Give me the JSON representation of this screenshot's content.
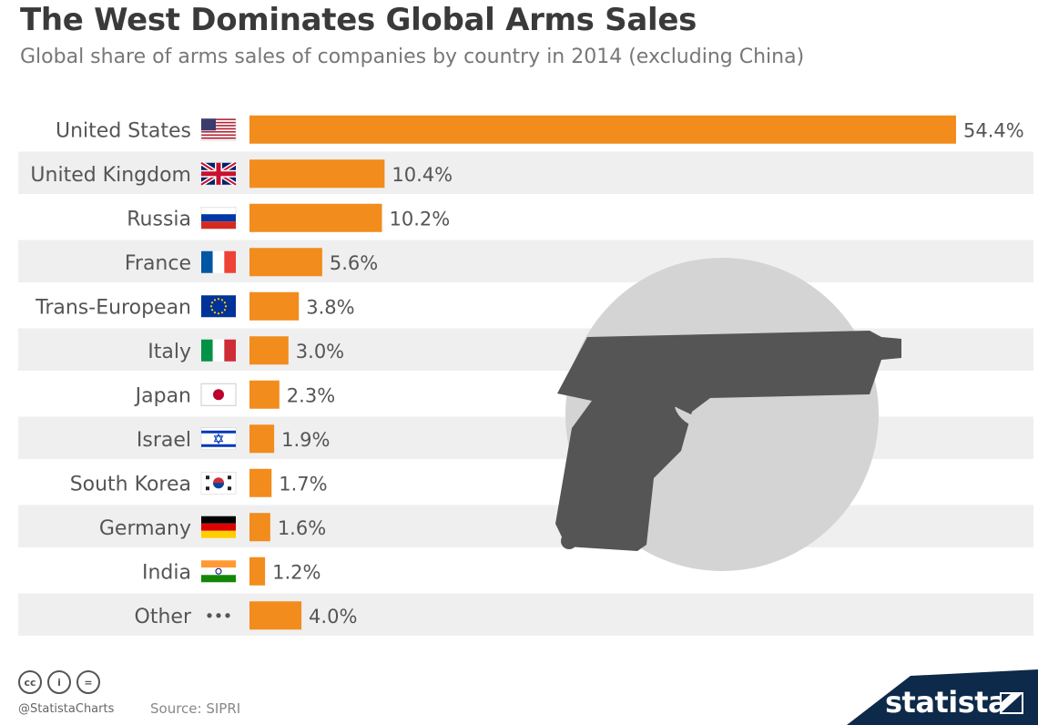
{
  "header": {
    "title": "The West Dominates Global Arms Sales",
    "subtitle": "Global share of arms sales of companies by country in 2014 (excluding China)"
  },
  "colors": {
    "bar": "#f28c1c",
    "stripe": "#efefef",
    "gun": "#555555",
    "disc": "#d4d4d4",
    "brand": "#0d2a4a"
  },
  "chart_data": {
    "type": "bar",
    "orientation": "horizontal",
    "categories": [
      "United States",
      "United Kingdom",
      "Russia",
      "France",
      "Trans-European",
      "Italy",
      "Japan",
      "Israel",
      "South Korea",
      "Germany",
      "India",
      "Other"
    ],
    "values": [
      54.4,
      10.4,
      10.2,
      5.6,
      3.8,
      3.0,
      2.3,
      1.9,
      1.7,
      1.6,
      1.2,
      4.0
    ],
    "value_labels": [
      "54.4%",
      "10.4%",
      "10.2%",
      "5.6%",
      "3.8%",
      "3.0%",
      "2.3%",
      "1.9%",
      "1.7%",
      "1.6%",
      "1.2%",
      "4.0%"
    ],
    "flag_icons": [
      "us-flag-icon",
      "uk-flag-icon",
      "russia-flag-icon",
      "france-flag-icon",
      "eu-flag-icon",
      "italy-flag-icon",
      "japan-flag-icon",
      "israel-flag-icon",
      "south-korea-flag-icon",
      "germany-flag-icon",
      "india-flag-icon",
      "ellipsis-icon"
    ],
    "unit": "%",
    "grid": false,
    "legend": "none"
  },
  "footer": {
    "cc_icons": [
      "cc-icon",
      "by-icon",
      "nd-icon"
    ],
    "cc_text": [
      "cc",
      "i",
      "="
    ],
    "handle": "@StatistaCharts",
    "source": "Source: SIPRI",
    "brand": "statista"
  }
}
